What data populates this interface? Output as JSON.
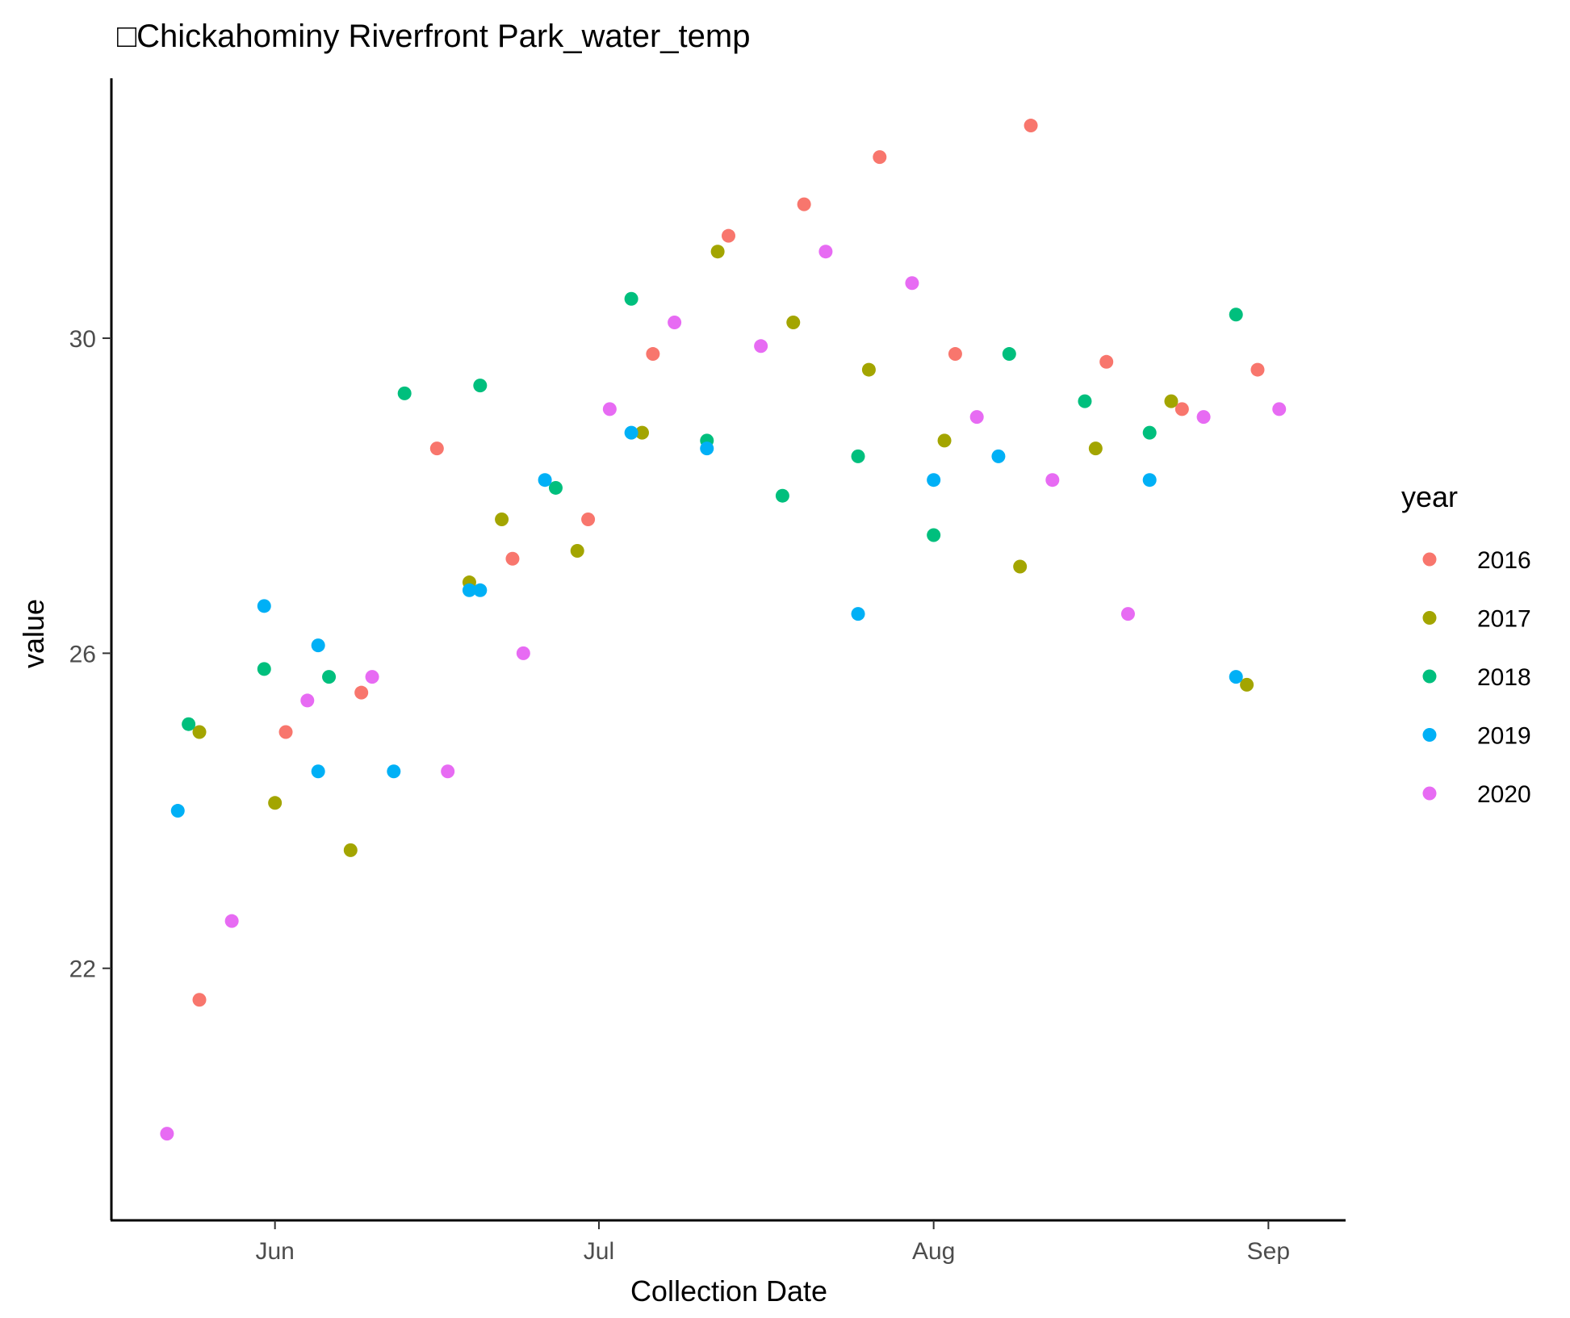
{
  "chart_data": {
    "type": "scatter",
    "title": "□Chickahominy Riverfront Park_water_temp",
    "xlabel": "Collection Date",
    "ylabel": "value",
    "x_ticks": [
      "Jun",
      "Jul",
      "Aug",
      "Sep"
    ],
    "x_tick_dates": [
      "2020-06-01",
      "2020-07-01",
      "2020-08-01",
      "2020-09-01"
    ],
    "xlim": [
      "2020-05-17",
      "2020-09-08"
    ],
    "y_ticks": [
      "22",
      "26",
      "30"
    ],
    "y_tick_values": [
      22,
      26,
      30
    ],
    "ylim": [
      18.8,
      33.3
    ],
    "grid": false,
    "legend": {
      "title": "year",
      "position": "right"
    },
    "series": [
      {
        "name": "2016",
        "color": "#F8766D",
        "points": [
          {
            "x": "2020-05-25",
            "y": 21.6
          },
          {
            "x": "2020-06-02",
            "y": 25.0
          },
          {
            "x": "2020-06-09",
            "y": 25.5
          },
          {
            "x": "2020-06-16",
            "y": 28.6
          },
          {
            "x": "2020-06-23",
            "y": 27.2
          },
          {
            "x": "2020-06-30",
            "y": 27.7
          },
          {
            "x": "2020-07-06",
            "y": 29.8
          },
          {
            "x": "2020-07-13",
            "y": 31.3
          },
          {
            "x": "2020-07-20",
            "y": 31.7
          },
          {
            "x": "2020-07-27",
            "y": 32.3
          },
          {
            "x": "2020-08-03",
            "y": 29.8
          },
          {
            "x": "2020-08-10",
            "y": 32.7
          },
          {
            "x": "2020-08-17",
            "y": 29.7
          },
          {
            "x": "2020-08-24",
            "y": 29.1
          },
          {
            "x": "2020-08-31",
            "y": 29.6
          }
        ]
      },
      {
        "name": "2017",
        "color": "#A3A500",
        "points": [
          {
            "x": "2020-05-25",
            "y": 25.0
          },
          {
            "x": "2020-06-01",
            "y": 24.1
          },
          {
            "x": "2020-06-08",
            "y": 23.5
          },
          {
            "x": "2020-06-19",
            "y": 26.9
          },
          {
            "x": "2020-06-22",
            "y": 27.7
          },
          {
            "x": "2020-06-29",
            "y": 27.3
          },
          {
            "x": "2020-07-05",
            "y": 28.8
          },
          {
            "x": "2020-07-12",
            "y": 31.1
          },
          {
            "x": "2020-07-19",
            "y": 30.2
          },
          {
            "x": "2020-07-26",
            "y": 29.6
          },
          {
            "x": "2020-08-02",
            "y": 28.7
          },
          {
            "x": "2020-08-09",
            "y": 27.1
          },
          {
            "x": "2020-08-16",
            "y": 28.6
          },
          {
            "x": "2020-08-23",
            "y": 29.2
          },
          {
            "x": "2020-08-30",
            "y": 25.6
          }
        ]
      },
      {
        "name": "2018",
        "color": "#00BF7D",
        "points": [
          {
            "x": "2020-05-24",
            "y": 25.1
          },
          {
            "x": "2020-05-31",
            "y": 25.8
          },
          {
            "x": "2020-06-06",
            "y": 25.7
          },
          {
            "x": "2020-06-13",
            "y": 29.3
          },
          {
            "x": "2020-06-20",
            "y": 29.4
          },
          {
            "x": "2020-06-27",
            "y": 28.1
          },
          {
            "x": "2020-07-04",
            "y": 30.5
          },
          {
            "x": "2020-07-11",
            "y": 28.7
          },
          {
            "x": "2020-07-18",
            "y": 28.0
          },
          {
            "x": "2020-07-25",
            "y": 28.5
          },
          {
            "x": "2020-08-01",
            "y": 27.5
          },
          {
            "x": "2020-08-08",
            "y": 29.8
          },
          {
            "x": "2020-08-15",
            "y": 29.2
          },
          {
            "x": "2020-08-21",
            "y": 28.8
          },
          {
            "x": "2020-08-29",
            "y": 30.3
          }
        ]
      },
      {
        "name": "2019",
        "color": "#00B0F6",
        "points": [
          {
            "x": "2020-05-23",
            "y": 24.0
          },
          {
            "x": "2020-05-31",
            "y": 26.6
          },
          {
            "x": "2020-06-05",
            "y": 26.1
          },
          {
            "x": "2020-06-05",
            "y": 24.5
          },
          {
            "x": "2020-06-12",
            "y": 24.5
          },
          {
            "x": "2020-06-19",
            "y": 26.8
          },
          {
            "x": "2020-06-20",
            "y": 26.8
          },
          {
            "x": "2020-06-26",
            "y": 28.2
          },
          {
            "x": "2020-07-04",
            "y": 28.8
          },
          {
            "x": "2020-07-11",
            "y": 28.6
          },
          {
            "x": "2020-07-25",
            "y": 26.5
          },
          {
            "x": "2020-08-01",
            "y": 28.2
          },
          {
            "x": "2020-08-07",
            "y": 28.5
          },
          {
            "x": "2020-08-21",
            "y": 28.2
          },
          {
            "x": "2020-08-29",
            "y": 25.7
          }
        ]
      },
      {
        "name": "2020",
        "color": "#E76BF3",
        "points": [
          {
            "x": "2020-05-22",
            "y": 19.9
          },
          {
            "x": "2020-05-28",
            "y": 22.6
          },
          {
            "x": "2020-06-04",
            "y": 25.4
          },
          {
            "x": "2020-06-10",
            "y": 25.7
          },
          {
            "x": "2020-06-17",
            "y": 24.5
          },
          {
            "x": "2020-06-24",
            "y": 26.0
          },
          {
            "x": "2020-07-02",
            "y": 29.1
          },
          {
            "x": "2020-07-08",
            "y": 30.2
          },
          {
            "x": "2020-07-16",
            "y": 29.9
          },
          {
            "x": "2020-07-22",
            "y": 31.1
          },
          {
            "x": "2020-07-30",
            "y": 30.7
          },
          {
            "x": "2020-08-05",
            "y": 29.0
          },
          {
            "x": "2020-08-12",
            "y": 28.2
          },
          {
            "x": "2020-08-19",
            "y": 26.5
          },
          {
            "x": "2020-08-26",
            "y": 29.0
          },
          {
            "x": "2020-09-02",
            "y": 29.1
          }
        ]
      }
    ]
  }
}
